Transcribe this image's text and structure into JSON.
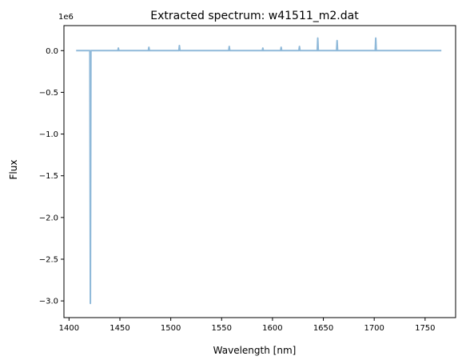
{
  "chart_data": {
    "type": "line",
    "title": "Extracted spectrum: w41511_m2.dat",
    "xlabel": "Wavelength [nm]",
    "ylabel": "Flux",
    "y_offset_label": "1e6",
    "xlim": [
      1395,
      1780
    ],
    "ylim": [
      -3.2,
      0.3
    ],
    "xticks": [
      1400,
      1450,
      1500,
      1550,
      1600,
      1650,
      1700,
      1750
    ],
    "xtick_labels": [
      "1400",
      "1450",
      "1500",
      "1550",
      "1600",
      "1650",
      "1700",
      "1750"
    ],
    "yticks": [
      0.0,
      -0.5,
      -1.0,
      -1.5,
      -2.0,
      -2.5,
      -3.0
    ],
    "ytick_labels": [
      "0.0",
      "−0.5",
      "−1.0",
      "−1.5",
      "−2.0",
      "−2.5",
      "−3.0"
    ],
    "grid": false,
    "line_color": "#8fb9d9",
    "series": [
      {
        "x": [
          1407,
          1418,
          1420.5,
          1421,
          1421.5,
          1423,
          1440,
          1448,
          1448.5,
          1449,
          1460,
          1478,
          1478.5,
          1479,
          1508,
          1508.5,
          1509,
          1540,
          1557,
          1557.5,
          1558,
          1590,
          1590.5,
          1591,
          1608,
          1608.5,
          1609,
          1626,
          1626.5,
          1627,
          1644,
          1644.5,
          1645,
          1663,
          1663.5,
          1664,
          1680,
          1701,
          1701.5,
          1702,
          1730,
          1766
        ],
        "y": [
          0.0,
          0.0,
          0.0,
          -3.03,
          0.0,
          0.0,
          0.0,
          0.0,
          0.03,
          0.0,
          0.0,
          0.0,
          0.04,
          0.0,
          0.0,
          0.06,
          0.0,
          0.0,
          0.0,
          0.05,
          0.0,
          0.0,
          0.03,
          0.0,
          0.0,
          0.04,
          0.0,
          0.0,
          0.05,
          0.0,
          0.0,
          0.15,
          0.0,
          0.0,
          0.12,
          0.0,
          0.0,
          0.0,
          0.15,
          0.0,
          0.0,
          0.0
        ]
      }
    ]
  }
}
